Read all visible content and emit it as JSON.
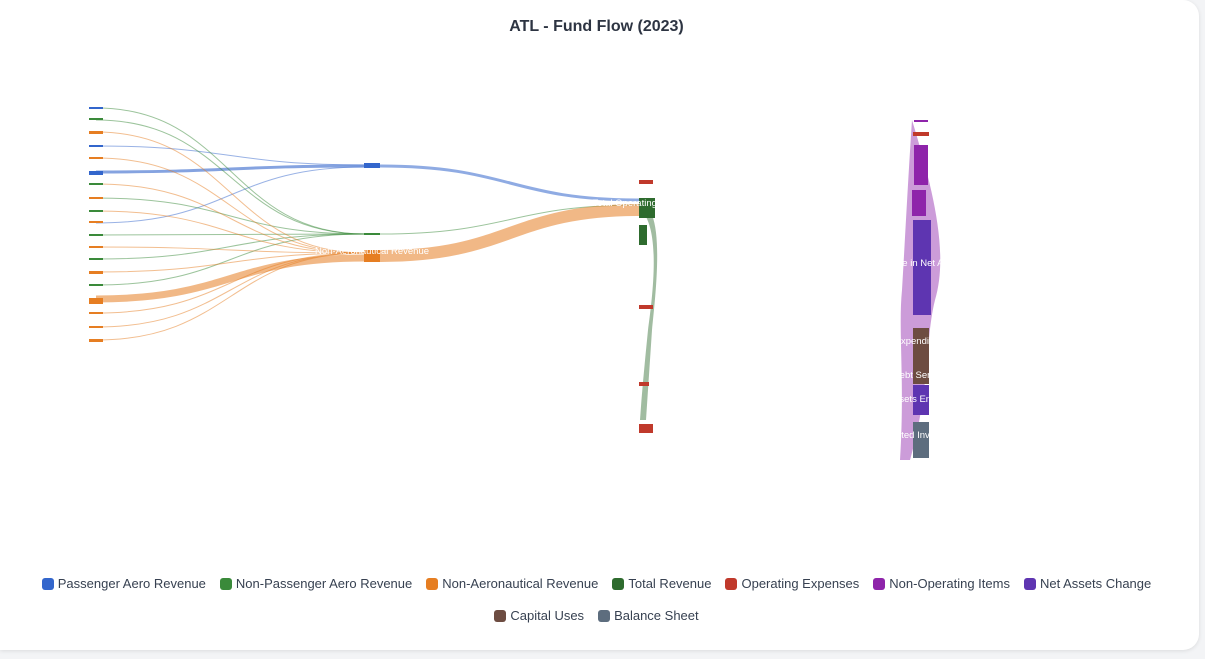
{
  "chart_data": {
    "type": "sankey",
    "title": "ATL - Fund Flow (2023)",
    "legend_position": "bottom",
    "categories": [
      {
        "name": "Passenger Aero Revenue",
        "color": "#3366cc"
      },
      {
        "name": "Non-Passenger Aero Revenue",
        "color": "#3a8a3a"
      },
      {
        "name": "Non-Aeronautical Revenue",
        "color": "#e67e22"
      },
      {
        "name": "Total Revenue",
        "color": "#2e6b2e"
      },
      {
        "name": "Operating Expenses",
        "color": "#c0392b"
      },
      {
        "name": "Non-Operating Items",
        "color": "#8e24aa"
      },
      {
        "name": "Net Assets Change",
        "color": "#5e35b1"
      },
      {
        "name": "Capital Uses",
        "color": "#6d4c41"
      },
      {
        "name": "Balance Sheet",
        "color": "#5d6d7e"
      }
    ],
    "node_labels": [
      "Non-Aeronautical Revenue",
      "Total Operating Revenue",
      "Change in Net Assets",
      "Capital Expenditures & CIP",
      "Debt Service",
      "Net Assets End of Year",
      "Restricted Investments"
    ]
  }
}
